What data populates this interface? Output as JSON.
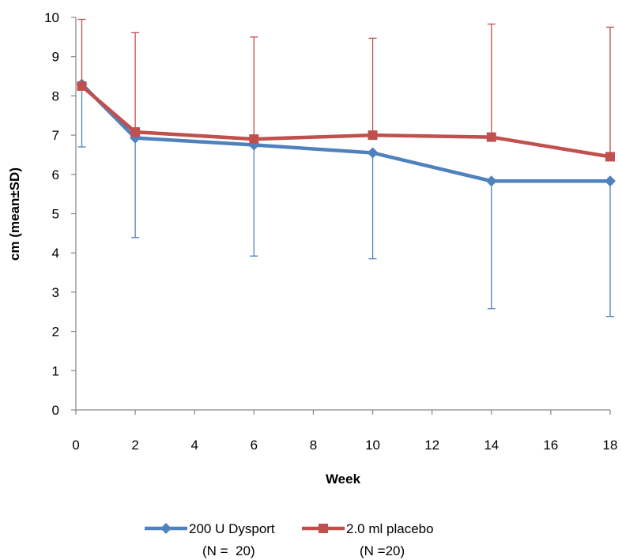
{
  "chart_data": {
    "type": "line",
    "title": "",
    "xlabel": "Week",
    "ylabel": "cm (mean±SD)",
    "xlim": [
      0,
      18
    ],
    "ylim": [
      0,
      10
    ],
    "x_ticks": [
      0,
      2,
      4,
      6,
      8,
      10,
      12,
      14,
      16,
      18
    ],
    "y_ticks": [
      0,
      1,
      2,
      3,
      4,
      5,
      6,
      7,
      8,
      9,
      10
    ],
    "grid": false,
    "legend_position": "bottom",
    "series": [
      {
        "name": "200 U Dysport",
        "sublabel": "(N =  20)",
        "color": "#4F81BD",
        "marker": "diamond",
        "error_direction": "down",
        "x": [
          0.2,
          2,
          6,
          10,
          14,
          18
        ],
        "y": [
          8.3,
          6.93,
          6.75,
          6.55,
          5.83,
          5.83
        ],
        "sd": [
          1.6,
          2.54,
          2.83,
          2.7,
          3.25,
          3.45
        ]
      },
      {
        "name": "2.0 ml placebo",
        "sublabel": "(N =20)",
        "color": "#C0504D",
        "marker": "square",
        "error_direction": "up",
        "x": [
          0.2,
          2,
          6,
          10,
          14,
          18
        ],
        "y": [
          8.25,
          7.08,
          6.9,
          7.0,
          6.95,
          6.45
        ],
        "sd": [
          1.7,
          2.53,
          2.6,
          2.47,
          2.88,
          3.3
        ]
      }
    ]
  }
}
